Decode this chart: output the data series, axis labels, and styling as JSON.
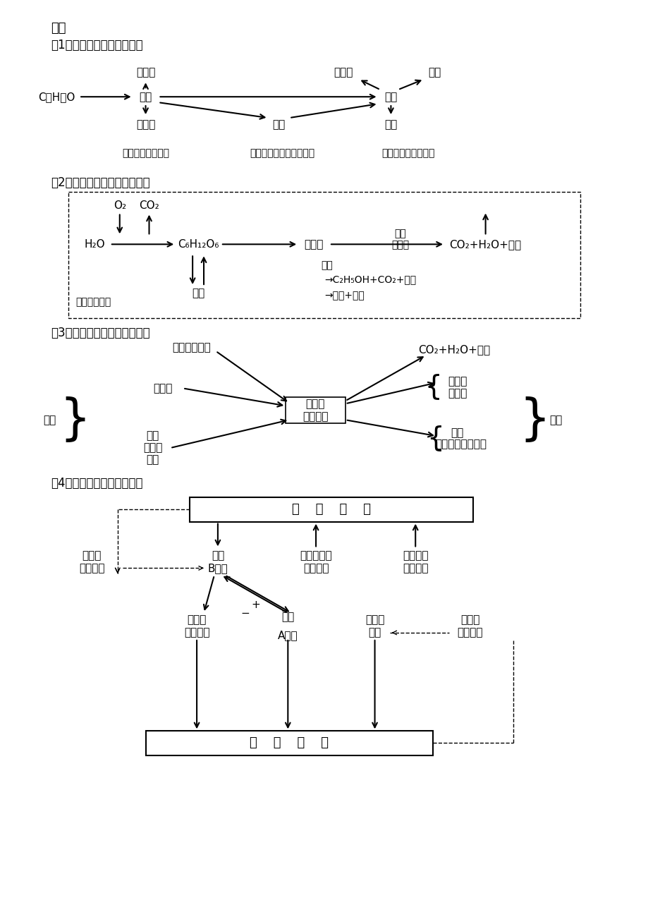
{
  "bg_color": "#ffffff",
  "text_color": "#000000",
  "title": "糖类",
  "s1_title": "（1）糖类的化学组成和种类",
  "s2_title": "（2）绿色植物体内糖类的代谢",
  "s3_title": "（3）人和动物体内糖类的代谢",
  "s4_title": "（4）人体内血糖平衡的调节"
}
